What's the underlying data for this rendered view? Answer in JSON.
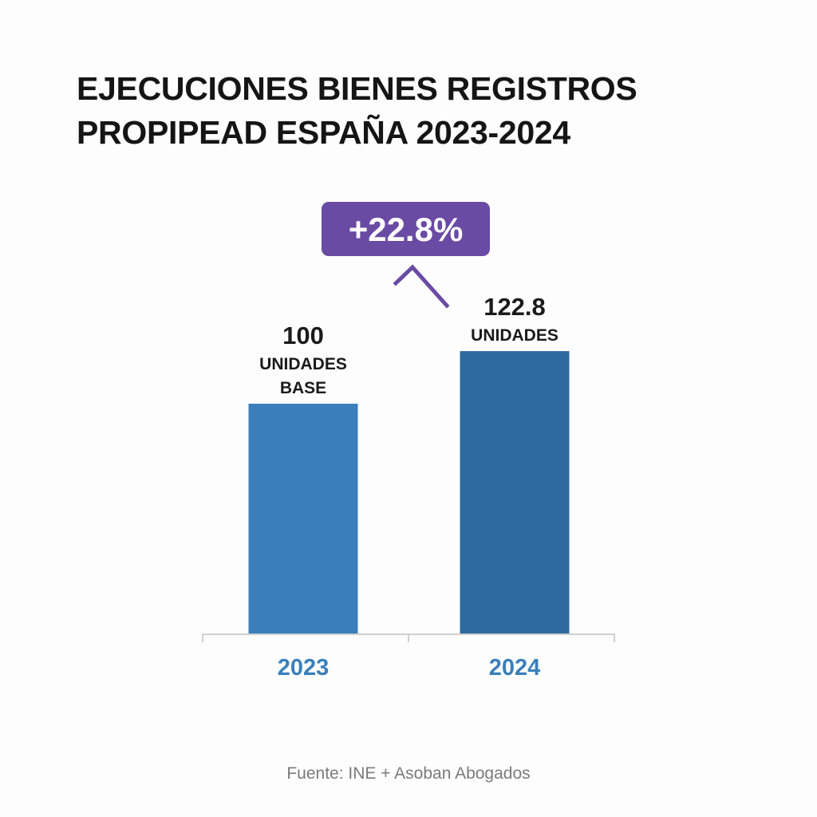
{
  "title_lines": [
    "EJECUCIONES BIENES REGISTROS",
    "PROPIPEAD ESPAÑA 2023-2024"
  ],
  "source": "Fuente: INE + Asoban Abogados",
  "colors": {
    "bar_2023": "#3a7fbb",
    "bar_2024": "#2e6a9f",
    "axis_label": "#3a7fbb",
    "badge": "#6a4ba3",
    "badge_text": "#ffffff",
    "axis_line": "#cfcfcf",
    "value_text": "#1a1a1a"
  },
  "chart_data": {
    "type": "bar",
    "title": "EJECUCIONES BIENES REGISTROS PROPIPEAD ESPAÑA 2023-2024",
    "categories": [
      "2023",
      "2024"
    ],
    "values": [
      100,
      122.8
    ],
    "value_labels": [
      {
        "number": "100",
        "lines": [
          "UNIDADES",
          "BASE"
        ]
      },
      {
        "number": "122.8",
        "lines": [
          "UNIDADES"
        ]
      }
    ],
    "annotation": "+22.8%",
    "ylim": [
      0,
      130
    ],
    "grid": false,
    "xlabel": "",
    "ylabel": ""
  }
}
